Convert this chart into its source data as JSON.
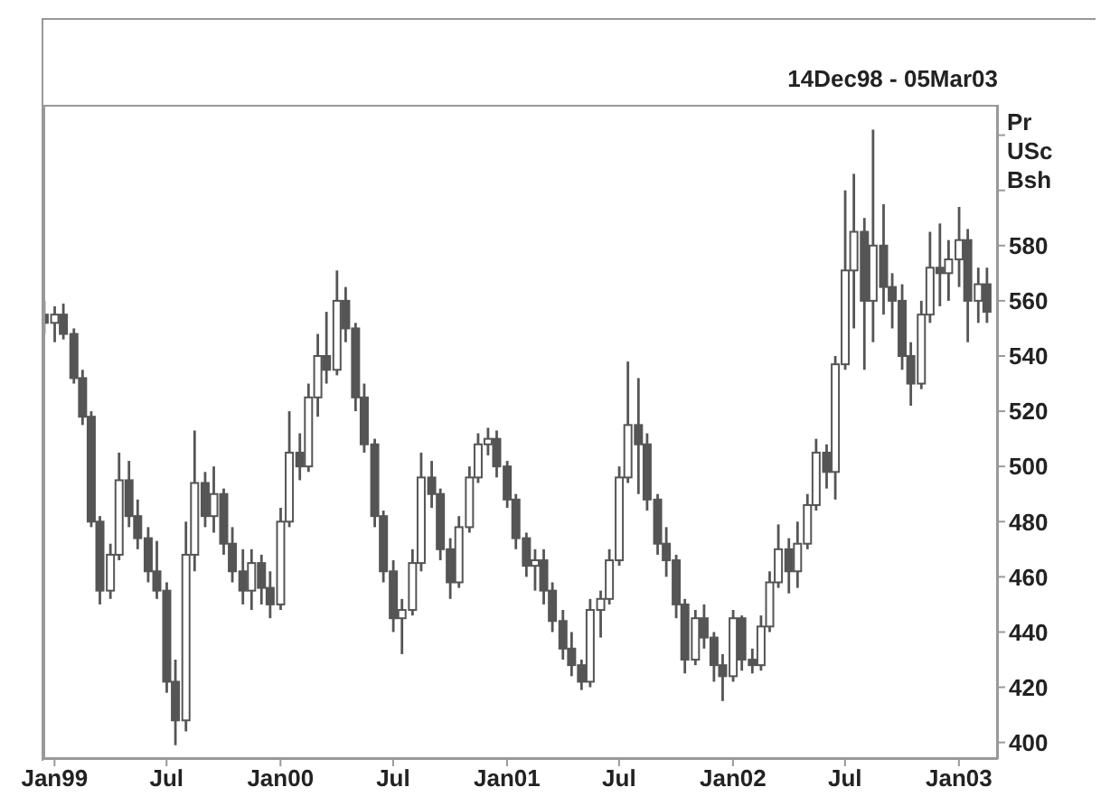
{
  "chart_data": {
    "type": "candlestick",
    "title": "14Dec98 - 05Mar03",
    "ylabel": "Pr USc Bsh",
    "color": "#555555",
    "x": [
      "1998-12-15",
      "1999-01-01",
      "1999-01-15",
      "1999-02-01",
      "1999-02-15",
      "1999-03-01",
      "1999-03-15",
      "1999-04-01",
      "1999-04-15",
      "1999-05-01",
      "1999-05-15",
      "1999-06-01",
      "1999-06-15",
      "1999-07-01",
      "1999-07-15",
      "1999-08-01",
      "1999-08-15",
      "1999-09-01",
      "1999-09-15",
      "1999-10-01",
      "1999-10-15",
      "1999-11-01",
      "1999-11-15",
      "1999-12-01",
      "1999-12-15",
      "2000-01-01",
      "2000-01-15",
      "2000-02-01",
      "2000-02-15",
      "2000-03-01",
      "2000-03-15",
      "2000-04-01",
      "2000-04-15",
      "2000-05-01",
      "2000-05-15",
      "2000-06-01",
      "2000-06-15",
      "2000-07-01",
      "2000-07-15",
      "2000-08-01",
      "2000-08-15",
      "2000-09-01",
      "2000-09-15",
      "2000-10-01",
      "2000-10-15",
      "2000-11-01",
      "2000-11-15",
      "2000-12-01",
      "2000-12-15",
      "2001-01-01",
      "2001-01-15",
      "2001-02-01",
      "2001-02-15",
      "2001-03-01",
      "2001-03-15",
      "2001-04-01",
      "2001-04-15",
      "2001-05-01",
      "2001-05-15",
      "2001-06-01",
      "2001-06-15",
      "2001-07-01",
      "2001-07-15",
      "2001-08-01",
      "2001-08-15",
      "2001-09-01",
      "2001-09-15",
      "2001-10-01",
      "2001-10-15",
      "2001-11-01",
      "2001-11-15",
      "2001-12-01",
      "2001-12-15",
      "2002-01-01",
      "2002-01-15",
      "2002-02-01",
      "2002-02-15",
      "2002-03-01",
      "2002-03-15",
      "2002-04-01",
      "2002-04-15",
      "2002-05-01",
      "2002-05-15",
      "2002-06-01",
      "2002-06-15",
      "2002-07-01",
      "2002-07-15",
      "2002-08-01",
      "2002-08-15",
      "2002-09-01",
      "2002-09-15",
      "2002-10-01",
      "2002-10-15",
      "2002-11-01",
      "2002-11-15",
      "2002-12-01",
      "2002-12-15",
      "2003-01-01",
      "2003-01-15",
      "2003-02-01",
      "2003-02-15"
    ],
    "ohlc": [
      [
        555,
        560,
        548,
        552
      ],
      [
        552,
        558,
        545,
        555
      ],
      [
        555,
        559,
        546,
        548
      ],
      [
        548,
        550,
        530,
        532
      ],
      [
        532,
        535,
        515,
        518
      ],
      [
        518,
        520,
        478,
        480
      ],
      [
        480,
        482,
        450,
        455
      ],
      [
        455,
        472,
        452,
        468
      ],
      [
        468,
        505,
        466,
        495
      ],
      [
        495,
        502,
        478,
        482
      ],
      [
        482,
        488,
        470,
        474
      ],
      [
        474,
        478,
        458,
        462
      ],
      [
        462,
        473,
        452,
        455
      ],
      [
        455,
        458,
        418,
        422
      ],
      [
        422,
        430,
        399,
        408
      ],
      [
        408,
        480,
        404,
        468
      ],
      [
        468,
        513,
        462,
        494
      ],
      [
        494,
        498,
        478,
        482
      ],
      [
        482,
        500,
        476,
        490
      ],
      [
        490,
        492,
        468,
        472
      ],
      [
        472,
        478,
        458,
        462
      ],
      [
        462,
        470,
        450,
        455
      ],
      [
        455,
        470,
        448,
        465
      ],
      [
        465,
        468,
        450,
        456
      ],
      [
        456,
        462,
        445,
        450
      ],
      [
        450,
        485,
        448,
        480
      ],
      [
        480,
        520,
        478,
        505
      ],
      [
        505,
        512,
        495,
        500
      ],
      [
        500,
        530,
        498,
        525
      ],
      [
        525,
        548,
        518,
        540
      ],
      [
        540,
        556,
        530,
        535
      ],
      [
        535,
        571,
        533,
        560
      ],
      [
        560,
        565,
        545,
        550
      ],
      [
        550,
        552,
        520,
        525
      ],
      [
        525,
        530,
        505,
        508
      ],
      [
        508,
        510,
        478,
        482
      ],
      [
        482,
        484,
        458,
        462
      ],
      [
        462,
        466,
        440,
        445
      ],
      [
        445,
        452,
        432,
        448
      ],
      [
        448,
        470,
        446,
        465
      ],
      [
        465,
        505,
        462,
        496
      ],
      [
        496,
        502,
        485,
        490
      ],
      [
        490,
        492,
        466,
        470
      ],
      [
        470,
        474,
        452,
        458
      ],
      [
        458,
        482,
        456,
        478
      ],
      [
        478,
        500,
        476,
        496
      ],
      [
        496,
        512,
        494,
        508
      ],
      [
        508,
        514,
        504,
        510
      ],
      [
        510,
        513,
        496,
        500
      ],
      [
        500,
        502,
        485,
        488
      ],
      [
        488,
        490,
        470,
        474
      ],
      [
        474,
        476,
        460,
        464
      ],
      [
        464,
        470,
        455,
        466
      ],
      [
        466,
        470,
        450,
        455
      ],
      [
        455,
        458,
        440,
        444
      ],
      [
        444,
        448,
        430,
        434
      ],
      [
        434,
        440,
        424,
        428
      ],
      [
        428,
        430,
        419,
        422
      ],
      [
        422,
        452,
        420,
        448
      ],
      [
        448,
        455,
        438,
        452
      ],
      [
        452,
        470,
        450,
        466
      ],
      [
        466,
        500,
        464,
        496
      ],
      [
        496,
        538,
        494,
        515
      ],
      [
        515,
        532,
        490,
        508
      ],
      [
        508,
        512,
        484,
        488
      ],
      [
        488,
        490,
        468,
        472
      ],
      [
        472,
        478,
        460,
        466
      ],
      [
        466,
        468,
        445,
        450
      ],
      [
        450,
        452,
        425,
        430
      ],
      [
        430,
        448,
        428,
        445
      ],
      [
        445,
        450,
        434,
        438
      ],
      [
        438,
        440,
        422,
        428
      ],
      [
        428,
        432,
        415,
        424
      ],
      [
        424,
        448,
        422,
        445
      ],
      [
        445,
        446,
        426,
        430
      ],
      [
        430,
        434,
        425,
        428
      ],
      [
        428,
        446,
        426,
        442
      ],
      [
        442,
        462,
        440,
        458
      ],
      [
        458,
        479,
        456,
        470
      ],
      [
        470,
        474,
        454,
        462
      ],
      [
        462,
        480,
        456,
        472
      ],
      [
        472,
        490,
        470,
        486
      ],
      [
        486,
        510,
        484,
        505
      ],
      [
        505,
        508,
        492,
        498
      ],
      [
        498,
        540,
        488,
        537
      ],
      [
        537,
        600,
        535,
        571
      ],
      [
        571,
        606,
        550,
        585
      ],
      [
        585,
        590,
        535,
        560
      ],
      [
        560,
        622,
        545,
        580
      ],
      [
        580,
        595,
        555,
        565
      ],
      [
        565,
        570,
        550,
        560
      ],
      [
        560,
        566,
        535,
        540
      ],
      [
        540,
        545,
        522,
        530
      ],
      [
        530,
        560,
        528,
        555
      ],
      [
        555,
        585,
        552,
        572
      ],
      [
        572,
        588,
        558,
        570
      ],
      [
        570,
        582,
        560,
        575
      ],
      [
        575,
        594,
        565,
        582
      ],
      [
        582,
        586,
        545,
        560
      ],
      [
        560,
        572,
        552,
        566
      ],
      [
        566,
        572,
        552,
        556
      ]
    ],
    "xlim": [
      "1998-12-14",
      "2003-03-05"
    ],
    "xticks": [
      {
        "value": "1999-01-01",
        "label": "Jan99"
      },
      {
        "value": "1999-07-01",
        "label": "Jul"
      },
      {
        "value": "2000-01-01",
        "label": "Jan00"
      },
      {
        "value": "2000-07-01",
        "label": "Jul"
      },
      {
        "value": "2001-01-01",
        "label": "Jan01"
      },
      {
        "value": "2001-07-01",
        "label": "Jul"
      },
      {
        "value": "2002-01-01",
        "label": "Jan02"
      },
      {
        "value": "2002-07-01",
        "label": "Jul"
      },
      {
        "value": "2003-01-01",
        "label": "Jan03"
      }
    ],
    "ylim": [
      394,
      631
    ],
    "yticks": [
      400,
      420,
      440,
      460,
      480,
      500,
      520,
      540,
      560,
      580,
      {
        "value": 600,
        "label": null
      },
      {
        "value": 620,
        "label": null
      }
    ]
  }
}
